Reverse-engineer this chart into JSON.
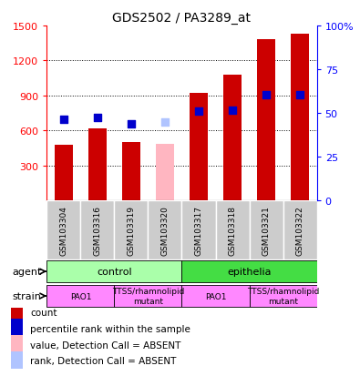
{
  "title": "GDS2502 / PA3289_at",
  "samples": [
    "GSM103304",
    "GSM103316",
    "GSM103319",
    "GSM103320",
    "GSM103317",
    "GSM103318",
    "GSM103321",
    "GSM103322"
  ],
  "counts": [
    480,
    620,
    500,
    null,
    920,
    1080,
    1380,
    1430
  ],
  "ranks": [
    700,
    715,
    660,
    null,
    770,
    775,
    905,
    908
  ],
  "absent_count": [
    null,
    null,
    null,
    490,
    null,
    null,
    null,
    null
  ],
  "absent_rank": [
    null,
    null,
    null,
    675,
    null,
    null,
    null,
    null
  ],
  "ylim": [
    0,
    1500
  ],
  "y2lim": [
    0,
    100
  ],
  "yticks": [
    300,
    600,
    900,
    1200,
    1500
  ],
  "y2ticks": [
    0,
    25,
    50,
    75,
    100
  ],
  "agent_groups": [
    {
      "label": "control",
      "cols": [
        0,
        1,
        2,
        3
      ],
      "color": "#aaffaa"
    },
    {
      "label": "epithelia",
      "cols": [
        4,
        5,
        6,
        7
      ],
      "color": "#44dd44"
    }
  ],
  "strain_groups": [
    {
      "label": "PAO1",
      "cols": [
        0,
        1
      ],
      "color": "#ff88ff"
    },
    {
      "label": "TTSS/rhamnolipid\nmutant",
      "cols": [
        2,
        3
      ],
      "color": "#ff88ff"
    },
    {
      "label": "PAO1",
      "cols": [
        4,
        5
      ],
      "color": "#ff88ff"
    },
    {
      "label": "TTSS/rhamnolipid\nmutant",
      "cols": [
        6,
        7
      ],
      "color": "#ff88ff"
    }
  ],
  "bar_color": "#cc0000",
  "absent_bar_color": "#ffb6c1",
  "rank_color": "#0000cc",
  "absent_rank_color": "#b0c4ff",
  "bar_width": 0.55,
  "rank_marker_size": 40,
  "plot_bg": "#ffffff",
  "label_bg": "#cccccc",
  "grid_color": "#000000",
  "legend_items": [
    {
      "label": "count",
      "color": "#cc0000"
    },
    {
      "label": "percentile rank within the sample",
      "color": "#0000cc"
    },
    {
      "label": "value, Detection Call = ABSENT",
      "color": "#ffb6c1"
    },
    {
      "label": "rank, Detection Call = ABSENT",
      "color": "#b0c4ff"
    }
  ]
}
